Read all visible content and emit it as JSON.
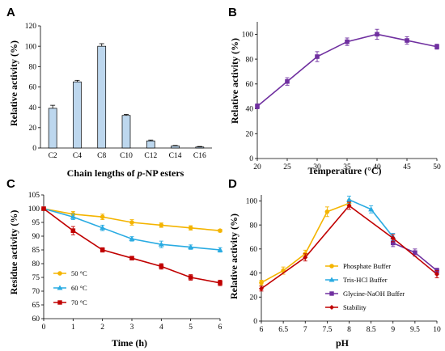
{
  "chart_data": [
    {
      "panel": "A",
      "type": "bar",
      "categories": [
        "C2",
        "C4",
        "C8",
        "C10",
        "C12",
        "C14",
        "C16"
      ],
      "values": [
        39,
        65,
        100,
        32,
        7,
        2,
        1
      ],
      "errors": [
        3,
        1.5,
        2.5,
        1,
        0.8,
        0.5,
        0.5
      ],
      "xlabel": "Chain lengths of p-NP esters",
      "xlabel_parts": [
        "Chain lengths of ",
        "p",
        "-NP esters"
      ],
      "ylabel": "Relative activity (%)",
      "ylim": [
        0,
        120
      ],
      "yticks": [
        "0",
        "20",
        "40",
        "60",
        "80",
        "100",
        "120"
      ],
      "bar_color": "#bdd7ee"
    },
    {
      "panel": "B",
      "type": "line",
      "x": [
        20,
        25,
        30,
        35,
        40,
        45,
        50
      ],
      "xticks": [
        "20",
        "25",
        "30",
        "35",
        "40",
        "45",
        "50"
      ],
      "series": [
        {
          "values": [
            42,
            62,
            82,
            94,
            100,
            95,
            90
          ],
          "errors": [
            2,
            3,
            4,
            3,
            4,
            3,
            2
          ],
          "color": "#7030a0"
        }
      ],
      "xlabel": "Temperature (°C)",
      "ylabel": "Relative activity (%)",
      "xlim": [
        20,
        50
      ],
      "ylim": [
        0,
        110
      ],
      "yticks": [
        "0",
        "20",
        "40",
        "60",
        "80",
        "100"
      ],
      "grid": false
    },
    {
      "panel": "C",
      "type": "line",
      "x": [
        0,
        1,
        2,
        3,
        4,
        5,
        6
      ],
      "xticks": [
        "0",
        "1",
        "2",
        "3",
        "4",
        "5",
        "6"
      ],
      "series": [
        {
          "name": "50 °C",
          "values": [
            100,
            98,
            97,
            95,
            94,
            93,
            92
          ],
          "errors": [
            0.5,
            1,
            1,
            1,
            0.8,
            0.8,
            0.5
          ],
          "color": "#f4b400"
        },
        {
          "name": "60 °C",
          "values": [
            100,
            97,
            93,
            89,
            87,
            86,
            85
          ],
          "errors": [
            0.5,
            1,
            1,
            0.8,
            1.2,
            0.8,
            0.8
          ],
          "color": "#29abe2"
        },
        {
          "name": "70 °C",
          "values": [
            100,
            92,
            85,
            82,
            79,
            75,
            73
          ],
          "errors": [
            0.5,
            1.5,
            0.8,
            0.5,
            1,
            1,
            1
          ],
          "color": "#c00000"
        }
      ],
      "xlabel": "Time (h)",
      "ylabel": "Residue activity (%)",
      "xlim": [
        0,
        6
      ],
      "ylim": [
        60,
        105
      ],
      "yticks": [
        "60",
        "65",
        "70",
        "75",
        "80",
        "85",
        "90",
        "95",
        "100",
        "105"
      ],
      "legend": "bottom-left"
    },
    {
      "panel": "D",
      "type": "line",
      "x": [
        6,
        6.5,
        7,
        7.5,
        8,
        8.5,
        9,
        9.5,
        10
      ],
      "xticks": [
        "6",
        "6.5",
        "7",
        "7.5",
        "8",
        "8.5",
        "9",
        "9.5",
        "10"
      ],
      "series": [
        {
          "name": "Phosphate Buffer",
          "x": [
            6,
            6.5,
            7,
            7.5,
            8
          ],
          "values": [
            32,
            42,
            56,
            91,
            98
          ],
          "errors": [
            2,
            3,
            3,
            4,
            3
          ],
          "color": "#f4b400"
        },
        {
          "name": "Tris-HCl Buffer",
          "x": [
            8,
            8.5,
            9
          ],
          "values": [
            101,
            93,
            70
          ],
          "errors": [
            3,
            3,
            3
          ],
          "color": "#29abe2"
        },
        {
          "name": "Glycine-NaOH Buffer",
          "x": [
            9,
            9.5,
            10
          ],
          "values": [
            65,
            57,
            42
          ],
          "errors": [
            3,
            3,
            2
          ],
          "color": "#7030a0"
        },
        {
          "name": "Stability",
          "x": [
            6,
            7,
            8,
            9,
            10
          ],
          "values": [
            27,
            53,
            96,
            69,
            39
          ],
          "errors": [
            2,
            3,
            3,
            3,
            3
          ],
          "color": "#c00000"
        }
      ],
      "xlabel": "pH",
      "ylabel": "Relative activity (%)",
      "xlim": [
        6,
        10
      ],
      "ylim": [
        0,
        105
      ],
      "yticks": [
        "0",
        "20",
        "40",
        "60",
        "80",
        "100"
      ],
      "legend": "bottom-center"
    }
  ]
}
